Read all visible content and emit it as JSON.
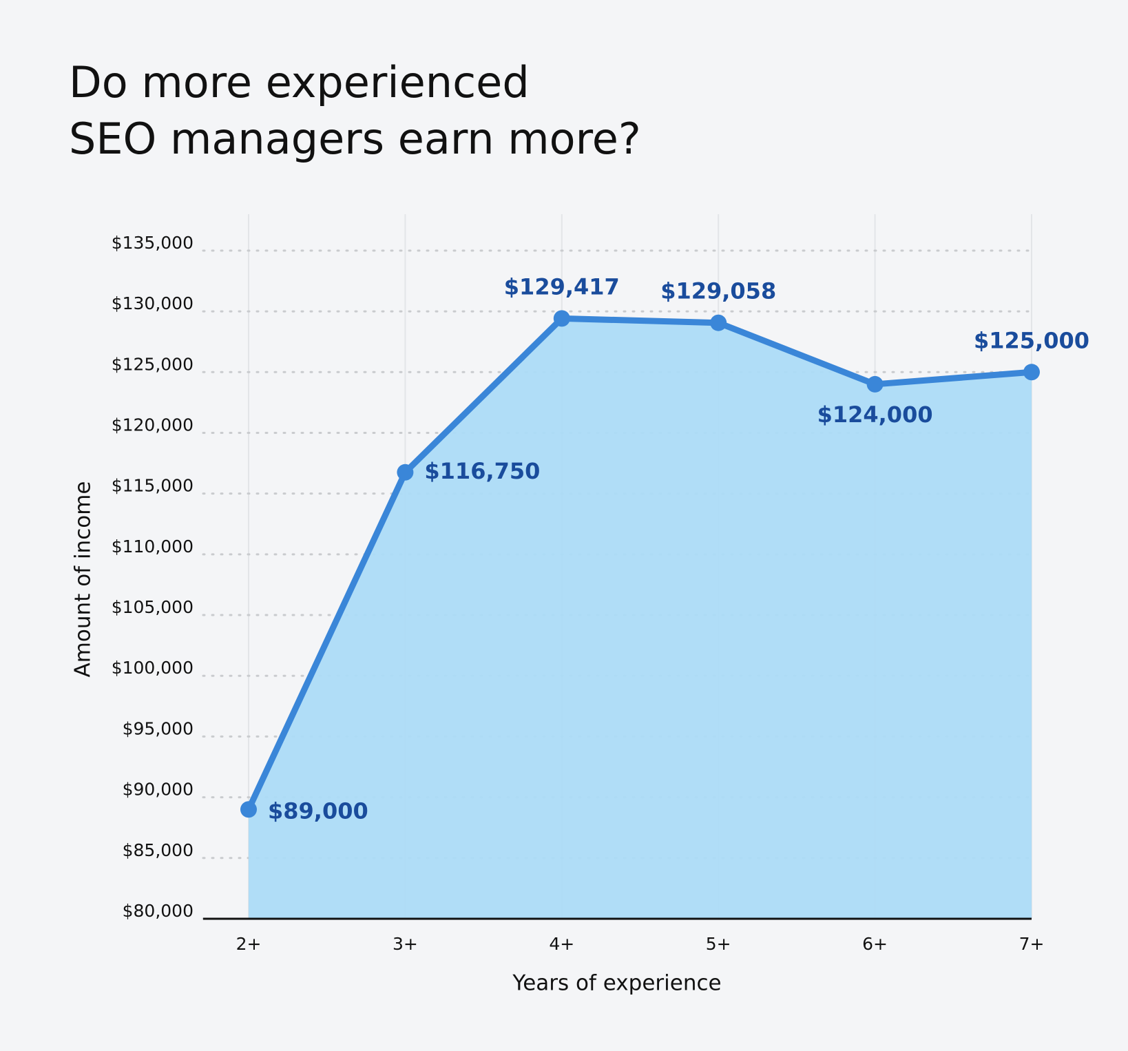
{
  "chart_data": {
    "type": "area",
    "title": [
      "Do more experienced",
      "SEO managers earn more?"
    ],
    "x_label": "Years of experience",
    "y_label": "Amount of income",
    "categories": [
      "2+",
      "3+",
      "4+",
      "5+",
      "6+",
      "7+"
    ],
    "series": [
      {
        "color": "#3a86d8",
        "fill_color": "#acdbf7",
        "values": [
          89000,
          116750,
          129417,
          129058,
          124000,
          125000
        ],
        "value_labels": [
          "$89,000",
          "$116,750",
          "$129,417",
          "$129,058",
          "$124,000",
          "$125,000"
        ]
      }
    ],
    "ylim": [
      80000,
      138000
    ],
    "yticks": [
      {
        "value": 80000,
        "label": "$80,000"
      },
      {
        "value": 85000,
        "label": "$85,000"
      },
      {
        "value": 90000,
        "label": "$90,000"
      },
      {
        "value": 95000,
        "label": "$95,000"
      },
      {
        "value": 100000,
        "label": "$100,000"
      },
      {
        "value": 105000,
        "label": "$105,000"
      },
      {
        "value": 110000,
        "label": "$110,000"
      },
      {
        "value": 115000,
        "label": "$115,000"
      },
      {
        "value": 120000,
        "label": "$120,000"
      },
      {
        "value": 125000,
        "label": "$125,000"
      },
      {
        "value": 130000,
        "label": "$130,000"
      },
      {
        "value": 135000,
        "label": "$135,000"
      }
    ],
    "grid": true
  }
}
